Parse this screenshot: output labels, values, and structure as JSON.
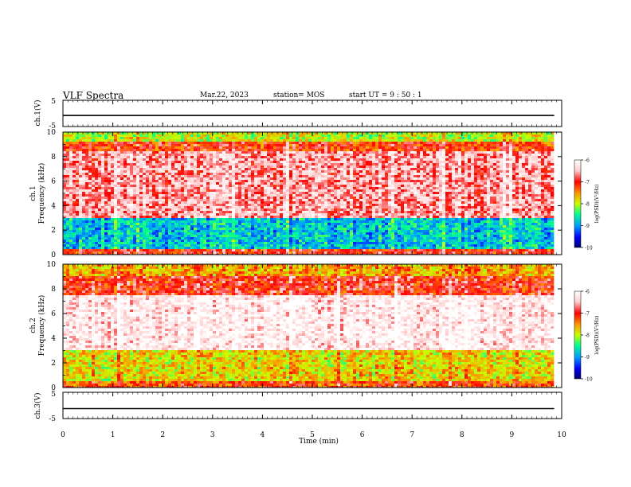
{
  "header": {
    "title": "VLF Spectra",
    "date": "Mar.22, 2023",
    "station": "station= MOS",
    "start": "start  UT  =   9 : 50 : 1"
  },
  "colors": {
    "background": "#ffffff",
    "axis": "#000000",
    "colormap": [
      "#00006e",
      "#0000ff",
      "#00a0ff",
      "#00ff90",
      "#c8ff00",
      "#ff9600",
      "#ff0000",
      "#ffd0d0",
      "#ffffff"
    ]
  },
  "chart_data": [
    {
      "type": "line",
      "panel": "ch1-waveform",
      "ylabel": "ch.1(V)",
      "ylim": [
        -5,
        5
      ],
      "yticks": [
        "5",
        "-5"
      ],
      "x": [
        0,
        1,
        2,
        3,
        4,
        5,
        6,
        7,
        8,
        9,
        9.85
      ],
      "values": [
        -0.8,
        -0.8,
        -0.8,
        -0.8,
        -0.8,
        -0.8,
        -0.8,
        -0.8,
        -0.8,
        -0.8,
        -0.8
      ],
      "color": "#000000"
    },
    {
      "type": "heatmap",
      "panel": "ch1-spectrogram",
      "ylabel_line1": "ch.1",
      "ylabel_line2": "Frequency (kHz)",
      "ylim": [
        0,
        10
      ],
      "yticks": [
        "0",
        "2",
        "4",
        "6",
        "8",
        "10"
      ],
      "xlim": [
        0,
        10
      ],
      "x_data_end": 9.85,
      "colorbar": {
        "label": "log(PSD)(V²/Hz)",
        "range": [
          -10,
          -6
        ],
        "ticks": [
          "-6",
          "-7",
          "-8",
          "-9",
          "-10"
        ]
      },
      "bands_khz": [
        {
          "from": 0.0,
          "to": 0.5,
          "log_psd": -7.0
        },
        {
          "from": 0.5,
          "to": 3.0,
          "log_psd": -8.8
        },
        {
          "from": 3.0,
          "to": 8.5,
          "log_psd": -6.6
        },
        {
          "from": 8.5,
          "to": 9.2,
          "log_psd": -7.1
        },
        {
          "from": 9.2,
          "to": 10.0,
          "log_psd": -8.0
        }
      ]
    },
    {
      "type": "heatmap",
      "panel": "ch2-spectrogram",
      "ylabel_line1": "ch.2",
      "ylabel_line2": "Frequency (kHz)",
      "ylim": [
        0,
        10
      ],
      "yticks": [
        "0",
        "2",
        "4",
        "6",
        "8",
        "10"
      ],
      "xlim": [
        0,
        10
      ],
      "x_data_end": 9.85,
      "colorbar": {
        "label": "log(PSD)(V²/Hz)",
        "range": [
          -10,
          -6
        ],
        "ticks": [
          "-6",
          "-7",
          "-8",
          "-9",
          "-10"
        ]
      },
      "bands_khz": [
        {
          "from": 0.0,
          "to": 0.5,
          "log_psd": -7.2
        },
        {
          "from": 0.5,
          "to": 3.0,
          "log_psd": -7.8
        },
        {
          "from": 3.0,
          "to": 7.5,
          "log_psd": -6.2
        },
        {
          "from": 7.5,
          "to": 9.0,
          "log_psd": -7.0
        },
        {
          "from": 9.0,
          "to": 10.0,
          "log_psd": -7.6
        }
      ]
    },
    {
      "type": "line",
      "panel": "ch3-waveform",
      "ylabel": "ch.3(V)",
      "ylim": [
        -5,
        5
      ],
      "yticks": [
        "5",
        "-5"
      ],
      "x": [
        0,
        1,
        2,
        3,
        4,
        5,
        6,
        7,
        8,
        9,
        9.85
      ],
      "values": [
        -1.2,
        -1.2,
        -1.2,
        -1.2,
        -1.2,
        -1.2,
        -1.2,
        -1.2,
        -1.2,
        -1.2,
        -1.2
      ],
      "color": "#000000"
    }
  ],
  "xaxis": {
    "label": "Time (min)",
    "ticks": [
      "0",
      "1",
      "2",
      "3",
      "4",
      "5",
      "6",
      "7",
      "8",
      "9",
      "10"
    ]
  }
}
